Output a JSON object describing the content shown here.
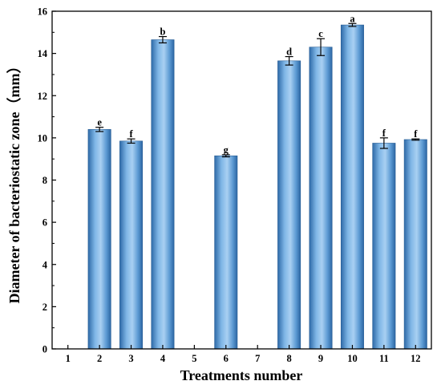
{
  "chart_data": {
    "type": "bar",
    "xlabel": "Treatments  number",
    "ylabel": "Diameter of bacteriostatic zone（mm）",
    "ylim": [
      0,
      16
    ],
    "yticks": [
      "0",
      "2",
      "4",
      "6",
      "8",
      "10",
      "12",
      "14",
      "16"
    ],
    "categories": [
      "1",
      "2",
      "3",
      "4",
      "5",
      "6",
      "7",
      "8",
      "9",
      "10",
      "11",
      "12"
    ],
    "values": [
      0,
      10.4,
      9.85,
      14.65,
      0,
      9.15,
      0,
      13.65,
      14.3,
      15.35,
      9.75,
      9.92
    ],
    "errors": [
      0,
      0.1,
      0.1,
      0.15,
      0,
      0.05,
      0,
      0.2,
      0.4,
      0.07,
      0.25,
      0.03
    ],
    "significance": [
      "",
      "e",
      "f",
      "b",
      "",
      "g",
      "",
      "d",
      "c",
      "a",
      "f",
      "f"
    ],
    "bar_color": "#4a8cc8",
    "grid": false,
    "legend": "none"
  }
}
